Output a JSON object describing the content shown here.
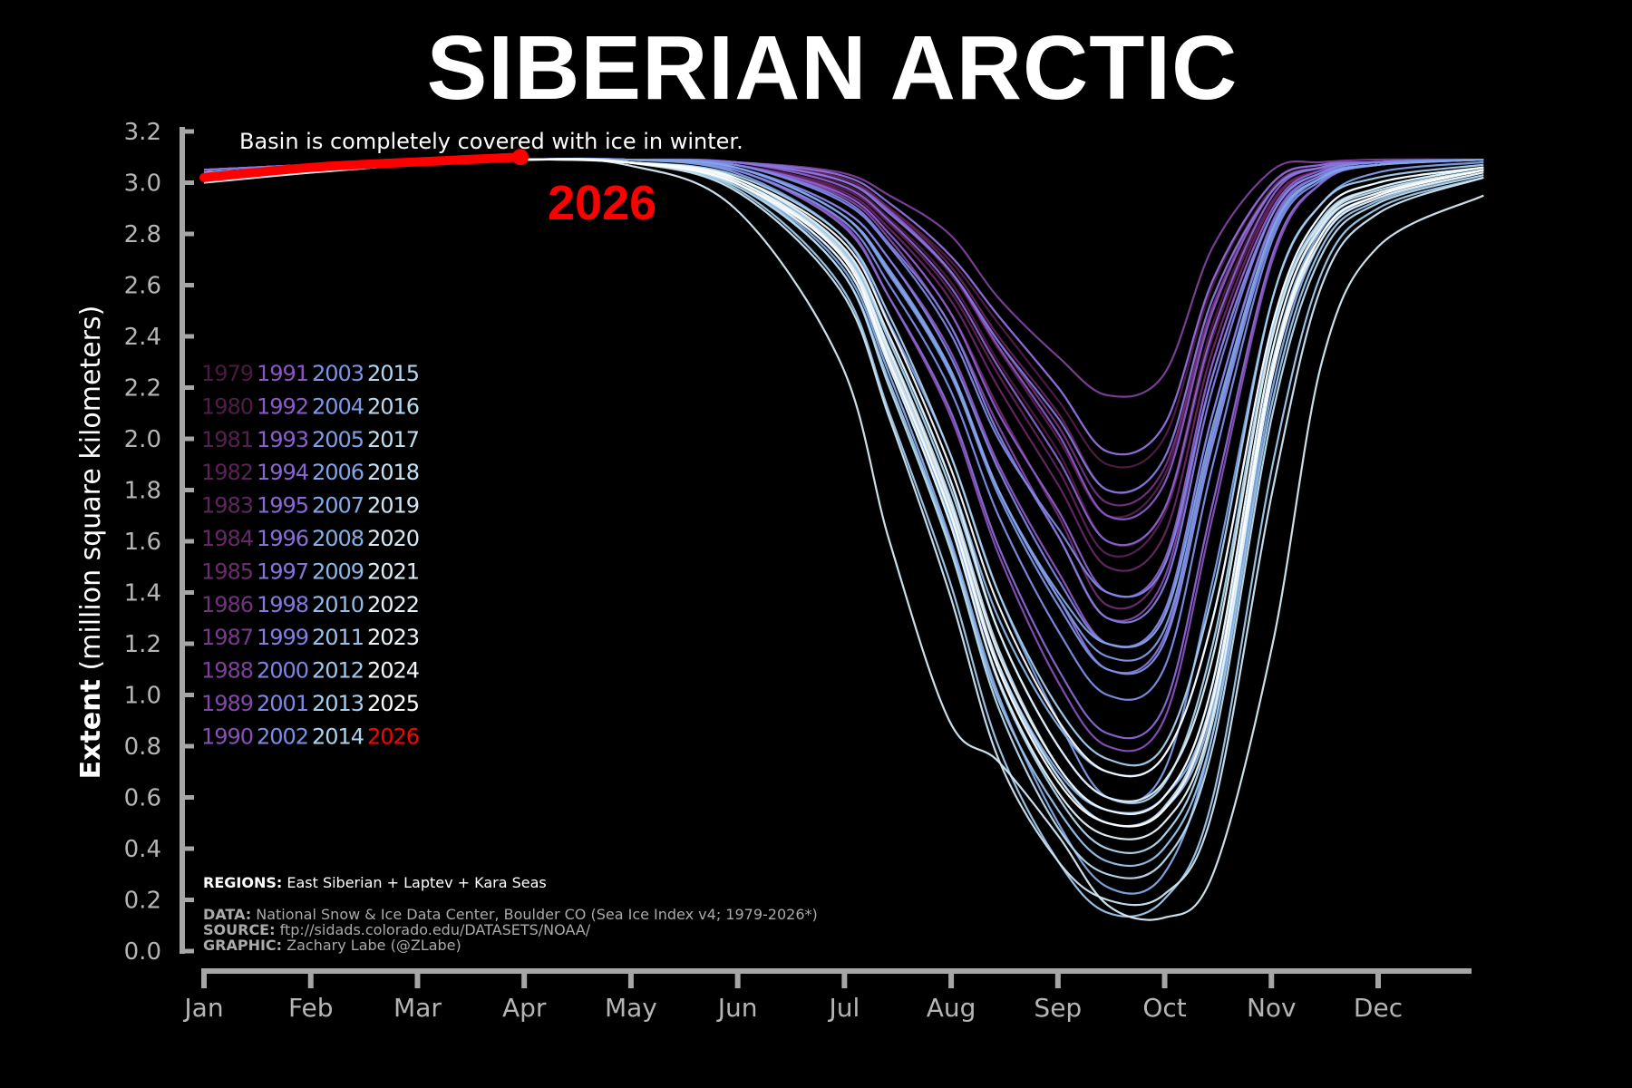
{
  "chart_data": {
    "type": "line",
    "title": "SIBERIAN ARCTIC",
    "annotation": "Basin is completely covered with ice in winter.",
    "highlight_label": "2026",
    "ylabel_bold": "Extent",
    "ylabel_rest": " (million square kilometers)",
    "ylim": [
      0,
      3.2
    ],
    "yticks": [
      "0.0",
      "0.2",
      "0.4",
      "0.6",
      "0.8",
      "1.0",
      "1.2",
      "1.4",
      "1.6",
      "1.8",
      "2.0",
      "2.2",
      "2.4",
      "2.6",
      "2.8",
      "3.0",
      "3.2"
    ],
    "xticks": [
      "Jan",
      "Feb",
      "Mar",
      "Apr",
      "May",
      "Jun",
      "Jul",
      "Aug",
      "Sep",
      "Oct",
      "Nov",
      "Dec"
    ],
    "grid": false,
    "legend_placement": "left",
    "colors": {
      "highlight": "#ff0000",
      "axis": "#a6a6a6",
      "colormap": [
        "#4a1a40",
        "#6a2a6a",
        "#8b52c0",
        "#8a6fd8",
        "#7b8fe6",
        "#86aee8",
        "#a9d3ee",
        "#d0e8f5",
        "#ffffff"
      ]
    },
    "x_day_of_year": [
      1,
      32,
      60,
      91,
      121,
      152,
      182,
      196,
      213,
      227,
      244,
      258,
      274,
      288,
      305,
      319,
      335,
      365
    ],
    "series": [
      {
        "name": "1979",
        "values": [
          3.05,
          3.07,
          3.08,
          3.09,
          3.09,
          3.08,
          3.0,
          2.86,
          2.62,
          2.3,
          1.95,
          1.6,
          1.72,
          2.45,
          2.95,
          3.06,
          3.08,
          3.09
        ]
      },
      {
        "name": "1980",
        "values": [
          3.04,
          3.06,
          3.08,
          3.09,
          3.09,
          3.08,
          3.02,
          2.9,
          2.7,
          2.45,
          2.15,
          1.9,
          2.0,
          2.6,
          3.0,
          3.07,
          3.08,
          3.09
        ]
      },
      {
        "name": "1981",
        "values": [
          3.05,
          3.06,
          3.08,
          3.09,
          3.09,
          3.08,
          3.01,
          2.88,
          2.65,
          2.35,
          2.0,
          1.7,
          1.85,
          2.5,
          2.97,
          3.06,
          3.08,
          3.09
        ]
      },
      {
        "name": "1982",
        "values": [
          3.03,
          3.06,
          3.07,
          3.09,
          3.09,
          3.07,
          2.98,
          2.84,
          2.58,
          2.25,
          1.88,
          1.55,
          1.7,
          2.4,
          2.93,
          3.05,
          3.08,
          3.09
        ]
      },
      {
        "name": "1983",
        "values": [
          3.05,
          3.07,
          3.08,
          3.09,
          3.09,
          3.08,
          3.02,
          2.9,
          2.68,
          2.4,
          2.1,
          1.8,
          1.92,
          2.55,
          2.98,
          3.06,
          3.08,
          3.09
        ]
      },
      {
        "name": "1984",
        "values": [
          3.04,
          3.06,
          3.08,
          3.09,
          3.09,
          3.07,
          2.97,
          2.82,
          2.55,
          2.2,
          1.82,
          1.5,
          1.62,
          2.35,
          2.92,
          3.05,
          3.08,
          3.09
        ]
      },
      {
        "name": "1985",
        "values": [
          3.04,
          3.06,
          3.08,
          3.09,
          3.09,
          3.07,
          2.96,
          2.8,
          2.5,
          2.12,
          1.7,
          1.35,
          1.5,
          2.3,
          2.9,
          3.05,
          3.08,
          3.09
        ]
      },
      {
        "name": "1986",
        "values": [
          3.05,
          3.07,
          3.08,
          3.09,
          3.09,
          3.08,
          3.01,
          2.89,
          2.66,
          2.38,
          2.05,
          1.75,
          1.88,
          2.52,
          2.97,
          3.06,
          3.08,
          3.09
        ]
      },
      {
        "name": "1987",
        "values": [
          3.05,
          3.07,
          3.08,
          3.09,
          3.09,
          3.08,
          3.03,
          2.92,
          2.72,
          2.48,
          2.2,
          1.95,
          2.05,
          2.62,
          3.0,
          3.07,
          3.08,
          3.09
        ]
      },
      {
        "name": "1988",
        "values": [
          3.05,
          3.07,
          3.08,
          3.09,
          3.09,
          3.08,
          3.04,
          2.95,
          2.8,
          2.55,
          2.32,
          2.17,
          2.25,
          2.75,
          3.05,
          3.08,
          3.09,
          3.09
        ]
      },
      {
        "name": "1989",
        "values": [
          3.04,
          3.06,
          3.08,
          3.09,
          3.09,
          3.07,
          2.95,
          2.78,
          2.45,
          2.05,
          1.62,
          1.3,
          1.45,
          2.25,
          2.88,
          3.04,
          3.08,
          3.09
        ]
      },
      {
        "name": "1990",
        "values": [
          3.04,
          3.06,
          3.08,
          3.09,
          3.09,
          3.05,
          2.85,
          2.55,
          2.1,
          1.55,
          1.05,
          0.8,
          0.9,
          1.7,
          2.7,
          3.0,
          3.07,
          3.09
        ]
      },
      {
        "name": "1991",
        "values": [
          3.04,
          3.06,
          3.08,
          3.09,
          3.09,
          3.06,
          2.9,
          2.7,
          2.35,
          1.9,
          1.48,
          1.2,
          1.32,
          2.1,
          2.85,
          3.03,
          3.07,
          3.09
        ]
      },
      {
        "name": "1992",
        "values": [
          3.05,
          3.07,
          3.08,
          3.09,
          3.09,
          3.08,
          3.01,
          2.89,
          2.66,
          2.36,
          2.02,
          1.7,
          1.82,
          2.5,
          2.97,
          3.06,
          3.08,
          3.09
        ]
      },
      {
        "name": "1993",
        "values": [
          3.04,
          3.06,
          3.08,
          3.09,
          3.09,
          3.07,
          2.96,
          2.8,
          2.5,
          2.1,
          1.72,
          1.4,
          1.52,
          2.3,
          2.9,
          3.05,
          3.08,
          3.09
        ]
      },
      {
        "name": "1994",
        "values": [
          3.05,
          3.07,
          3.08,
          3.09,
          3.09,
          3.08,
          2.99,
          2.85,
          2.6,
          2.28,
          1.92,
          1.6,
          1.72,
          2.42,
          2.95,
          3.06,
          3.08,
          3.09
        ]
      },
      {
        "name": "1995",
        "values": [
          3.04,
          3.06,
          3.08,
          3.09,
          3.09,
          3.05,
          2.84,
          2.55,
          2.12,
          1.58,
          1.1,
          0.85,
          0.95,
          1.75,
          2.72,
          3.0,
          3.07,
          3.09
        ]
      },
      {
        "name": "1996",
        "values": [
          3.05,
          3.07,
          3.08,
          3.09,
          3.09,
          3.08,
          3.03,
          2.92,
          2.72,
          2.48,
          2.2,
          1.95,
          2.05,
          2.62,
          3.0,
          3.07,
          3.08,
          3.09
        ]
      },
      {
        "name": "1997",
        "values": [
          3.04,
          3.06,
          3.08,
          3.09,
          3.09,
          3.06,
          2.88,
          2.65,
          2.28,
          1.8,
          1.38,
          1.1,
          1.22,
          2.0,
          2.82,
          3.02,
          3.07,
          3.09
        ]
      },
      {
        "name": "1998",
        "values": [
          3.05,
          3.07,
          3.08,
          3.09,
          3.09,
          3.08,
          3.01,
          2.88,
          2.66,
          2.38,
          2.08,
          1.8,
          1.92,
          2.55,
          2.97,
          3.06,
          3.08,
          3.09
        ]
      },
      {
        "name": "1999",
        "values": [
          3.04,
          3.06,
          3.08,
          3.09,
          3.09,
          3.07,
          2.94,
          2.76,
          2.45,
          2.02,
          1.62,
          1.3,
          1.42,
          2.2,
          2.88,
          3.04,
          3.08,
          3.09
        ]
      },
      {
        "name": "2000",
        "values": [
          3.04,
          3.06,
          3.08,
          3.09,
          3.09,
          3.06,
          2.9,
          2.7,
          2.33,
          1.88,
          1.45,
          1.2,
          1.32,
          2.1,
          2.84,
          3.03,
          3.07,
          3.09
        ]
      },
      {
        "name": "2001",
        "values": [
          3.04,
          3.06,
          3.08,
          3.09,
          3.09,
          3.07,
          2.93,
          2.75,
          2.42,
          2.0,
          1.65,
          1.4,
          1.5,
          2.25,
          2.88,
          3.04,
          3.08,
          3.09
        ]
      },
      {
        "name": "2002",
        "values": [
          3.04,
          3.06,
          3.08,
          3.09,
          3.09,
          3.05,
          2.86,
          2.6,
          2.2,
          1.7,
          1.25,
          1.0,
          1.1,
          1.9,
          2.78,
          3.01,
          3.07,
          3.09
        ]
      },
      {
        "name": "2003",
        "values": [
          3.04,
          3.06,
          3.08,
          3.09,
          3.09,
          3.06,
          2.88,
          2.64,
          2.26,
          1.78,
          1.35,
          1.1,
          1.2,
          1.98,
          2.8,
          3.02,
          3.07,
          3.09
        ]
      },
      {
        "name": "2004",
        "values": [
          3.04,
          3.06,
          3.08,
          3.09,
          3.09,
          3.06,
          2.88,
          2.66,
          2.28,
          1.8,
          1.38,
          1.15,
          1.25,
          2.02,
          2.82,
          3.02,
          3.07,
          3.09
        ]
      },
      {
        "name": "2005",
        "values": [
          3.03,
          3.06,
          3.08,
          3.09,
          3.09,
          3.04,
          2.8,
          2.45,
          1.95,
          1.4,
          0.9,
          0.6,
          0.7,
          1.45,
          2.55,
          2.92,
          3.04,
          3.08
        ]
      },
      {
        "name": "2006",
        "values": [
          3.04,
          3.06,
          3.08,
          3.09,
          3.09,
          3.06,
          2.88,
          2.65,
          2.27,
          1.8,
          1.4,
          1.2,
          1.3,
          2.05,
          2.82,
          3.02,
          3.07,
          3.09
        ]
      },
      {
        "name": "2007",
        "values": [
          3.02,
          3.05,
          3.07,
          3.09,
          3.08,
          3.0,
          2.68,
          2.25,
          1.62,
          1.0,
          0.5,
          0.25,
          0.3,
          0.85,
          2.2,
          2.78,
          2.95,
          3.05
        ]
      },
      {
        "name": "2008",
        "values": [
          3.02,
          3.05,
          3.07,
          3.09,
          3.08,
          3.01,
          2.72,
          2.32,
          1.72,
          1.12,
          0.7,
          0.55,
          0.6,
          1.0,
          2.3,
          2.82,
          2.96,
          3.05
        ]
      },
      {
        "name": "2009",
        "values": [
          3.03,
          3.05,
          3.07,
          3.09,
          3.08,
          3.02,
          2.76,
          2.4,
          1.85,
          1.3,
          0.88,
          0.7,
          0.76,
          1.3,
          2.45,
          2.88,
          3.0,
          3.06
        ]
      },
      {
        "name": "2010",
        "values": [
          3.02,
          3.05,
          3.07,
          3.09,
          3.08,
          3.01,
          2.72,
          2.3,
          1.7,
          1.1,
          0.68,
          0.5,
          0.55,
          0.95,
          2.28,
          2.8,
          2.95,
          3.05
        ]
      },
      {
        "name": "2011",
        "values": [
          3.02,
          3.05,
          3.07,
          3.09,
          3.08,
          3.0,
          2.66,
          2.22,
          1.6,
          0.98,
          0.55,
          0.35,
          0.4,
          0.85,
          2.15,
          2.75,
          2.93,
          3.04
        ]
      },
      {
        "name": "2012",
        "values": [
          3.02,
          3.05,
          3.07,
          3.09,
          3.08,
          2.98,
          2.6,
          2.1,
          1.45,
          0.8,
          0.35,
          0.15,
          0.2,
          0.6,
          1.9,
          2.65,
          2.9,
          3.02
        ]
      },
      {
        "name": "2013",
        "values": [
          3.03,
          3.05,
          3.07,
          3.09,
          3.08,
          3.03,
          2.8,
          2.48,
          1.95,
          1.4,
          0.95,
          0.75,
          0.8,
          1.4,
          2.55,
          2.92,
          3.02,
          3.07
        ]
      },
      {
        "name": "2014",
        "values": [
          3.03,
          3.05,
          3.07,
          3.09,
          3.08,
          3.02,
          2.75,
          2.38,
          1.82,
          1.25,
          0.8,
          0.6,
          0.65,
          1.2,
          2.42,
          2.86,
          2.98,
          3.06
        ]
      },
      {
        "name": "2015",
        "values": [
          3.02,
          3.05,
          3.07,
          3.09,
          3.08,
          3.0,
          2.7,
          2.28,
          1.68,
          1.05,
          0.6,
          0.4,
          0.45,
          0.9,
          2.25,
          2.8,
          2.95,
          3.05
        ]
      },
      {
        "name": "2016",
        "values": [
          3.02,
          3.05,
          3.07,
          3.09,
          3.08,
          2.99,
          2.66,
          2.2,
          1.58,
          0.95,
          0.48,
          0.3,
          0.35,
          0.8,
          2.1,
          2.72,
          2.92,
          3.03
        ]
      },
      {
        "name": "2017",
        "values": [
          3.02,
          3.05,
          3.07,
          3.09,
          3.08,
          3.01,
          2.74,
          2.35,
          1.78,
          1.18,
          0.72,
          0.55,
          0.6,
          1.05,
          2.35,
          2.84,
          2.97,
          3.05
        ]
      },
      {
        "name": "2018",
        "values": [
          3.02,
          3.05,
          3.07,
          3.09,
          3.08,
          3.01,
          2.72,
          2.32,
          1.74,
          1.12,
          0.68,
          0.5,
          0.56,
          1.0,
          2.3,
          2.8,
          2.95,
          3.05
        ]
      },
      {
        "name": "2019",
        "values": [
          3.01,
          3.04,
          3.07,
          3.09,
          3.08,
          2.97,
          2.58,
          2.08,
          1.4,
          0.75,
          0.35,
          0.2,
          0.22,
          0.55,
          1.8,
          2.6,
          2.88,
          3.02
        ]
      },
      {
        "name": "2020",
        "values": [
          3.0,
          3.04,
          3.07,
          3.09,
          3.07,
          2.9,
          2.3,
          1.6,
          0.9,
          0.74,
          0.45,
          0.18,
          0.13,
          0.3,
          1.2,
          2.3,
          2.75,
          2.95
        ]
      },
      {
        "name": "2021",
        "values": [
          3.03,
          3.05,
          3.07,
          3.09,
          3.08,
          3.02,
          2.76,
          2.4,
          1.85,
          1.25,
          0.8,
          0.6,
          0.66,
          1.15,
          2.4,
          2.85,
          2.98,
          3.06
        ]
      },
      {
        "name": "2022",
        "values": [
          3.02,
          3.05,
          3.07,
          3.09,
          3.08,
          3.0,
          2.7,
          2.28,
          1.68,
          1.06,
          0.62,
          0.45,
          0.5,
          0.92,
          2.25,
          2.78,
          2.94,
          3.04
        ]
      },
      {
        "name": "2023",
        "values": [
          3.02,
          3.05,
          3.07,
          3.09,
          3.08,
          3.01,
          2.73,
          2.34,
          1.76,
          1.16,
          0.72,
          0.55,
          0.6,
          1.05,
          2.35,
          2.83,
          2.96,
          3.05
        ]
      },
      {
        "name": "2024",
        "values": [
          3.03,
          3.05,
          3.07,
          3.09,
          3.08,
          3.02,
          2.78,
          2.44,
          1.9,
          1.35,
          0.9,
          0.7,
          0.76,
          1.3,
          2.45,
          2.88,
          3.0,
          3.06
        ]
      },
      {
        "name": "2025",
        "values": [
          3.02,
          3.05,
          3.07,
          3.09,
          3.08,
          3.0,
          2.72,
          2.3,
          1.72,
          1.1,
          0.66,
          0.5,
          0.55,
          0.98,
          2.28,
          2.8,
          2.95,
          3.05
        ]
      },
      {
        "name": "2026",
        "values": [
          3.02,
          3.06,
          3.08,
          3.1
        ]
      }
    ]
  },
  "footer": {
    "regions_label": "REGIONS:",
    "regions_text": " East Siberian + Laptev + Kara Seas",
    "data_label": "DATA:",
    "data_text": " National Snow & Ice Data Center, Boulder CO (Sea Ice Index v4; 1979-2026*)",
    "source_label": "SOURCE:",
    "source_text": " ftp://sidads.colorado.edu/DATASETS/NOAA/",
    "graphic_label": "GRAPHIC:",
    "graphic_text": " Zachary Labe (@ZLabe)"
  }
}
